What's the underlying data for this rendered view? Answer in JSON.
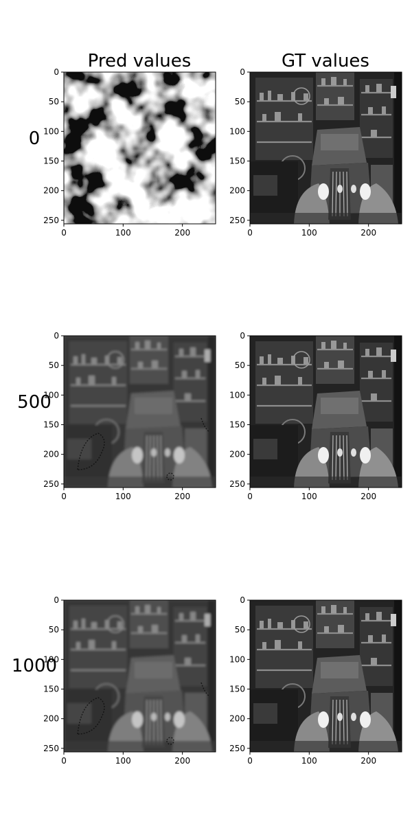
{
  "chart_data": {
    "type": "image-grid",
    "column_titles": [
      "Pred values",
      "GT values"
    ],
    "row_labels": [
      "0",
      "500",
      "1000"
    ],
    "xticks": [
      "0",
      "100",
      "200"
    ],
    "yticks": [
      "0",
      "50",
      "100",
      "150",
      "200",
      "250"
    ],
    "xlim": [
      0,
      256
    ],
    "ylim": [
      256,
      0
    ],
    "xtick_values": [
      0,
      100,
      200
    ],
    "ytick_values": [
      0,
      50,
      100,
      150,
      200,
      250
    ],
    "panels": [
      {
        "row": "0",
        "column": "Pred values",
        "content": "noise"
      },
      {
        "row": "0",
        "column": "GT values",
        "content": "garage-truck"
      },
      {
        "row": "500",
        "column": "Pred values",
        "content": "garage-truck-blurry"
      },
      {
        "row": "500",
        "column": "GT values",
        "content": "garage-truck"
      },
      {
        "row": "1000",
        "column": "Pred values",
        "content": "garage-truck-blurry"
      },
      {
        "row": "1000",
        "column": "GT values",
        "content": "garage-truck"
      }
    ]
  }
}
